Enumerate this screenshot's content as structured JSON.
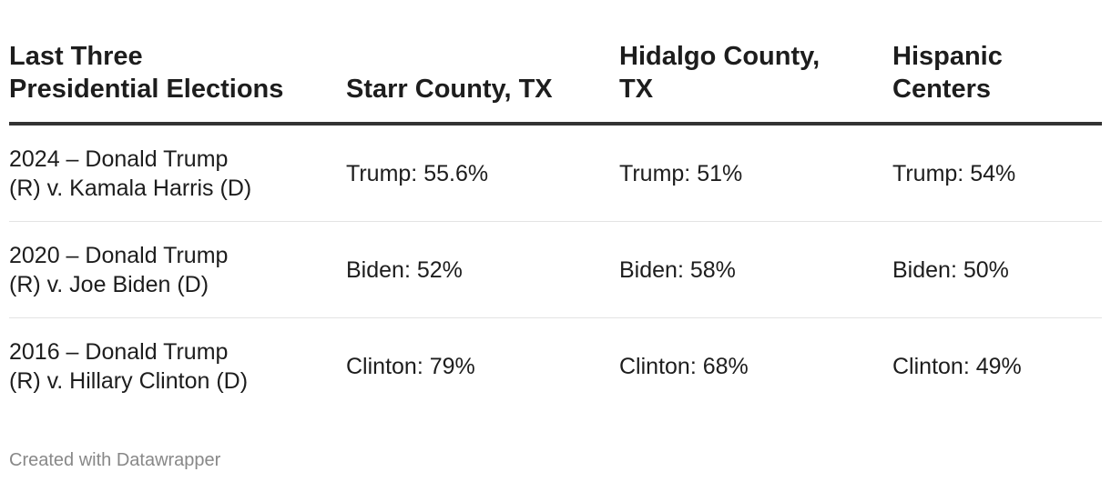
{
  "chart_data": {
    "type": "table",
    "columns": [
      "Last Three\nPresidential Elections",
      "Starr County, TX",
      "Hidalgo County,\nTX",
      "Hispanic\nCenters"
    ],
    "rows": [
      [
        "2024 – Donald Trump\n(R) v. Kamala Harris (D)",
        "Trump: 55.6%",
        "Trump: 51%",
        "Trump: 54%"
      ],
      [
        "2020 – Donald Trump\n(R) v. Joe Biden (D)",
        "Biden: 52%",
        "Biden: 58%",
        "Biden: 50%"
      ],
      [
        "2016 – Donald Trump\n(R) v. Hillary Clinton (D)",
        "Clinton: 79%",
        "Clinton: 68%",
        "Clinton: 49%"
      ]
    ]
  },
  "footer": {
    "credit": "Created with Datawrapper"
  },
  "colors": {
    "text": "#1d1d1d",
    "header_rule": "#333333",
    "row_divider": "#e3e3e3",
    "credit": "#888888"
  }
}
